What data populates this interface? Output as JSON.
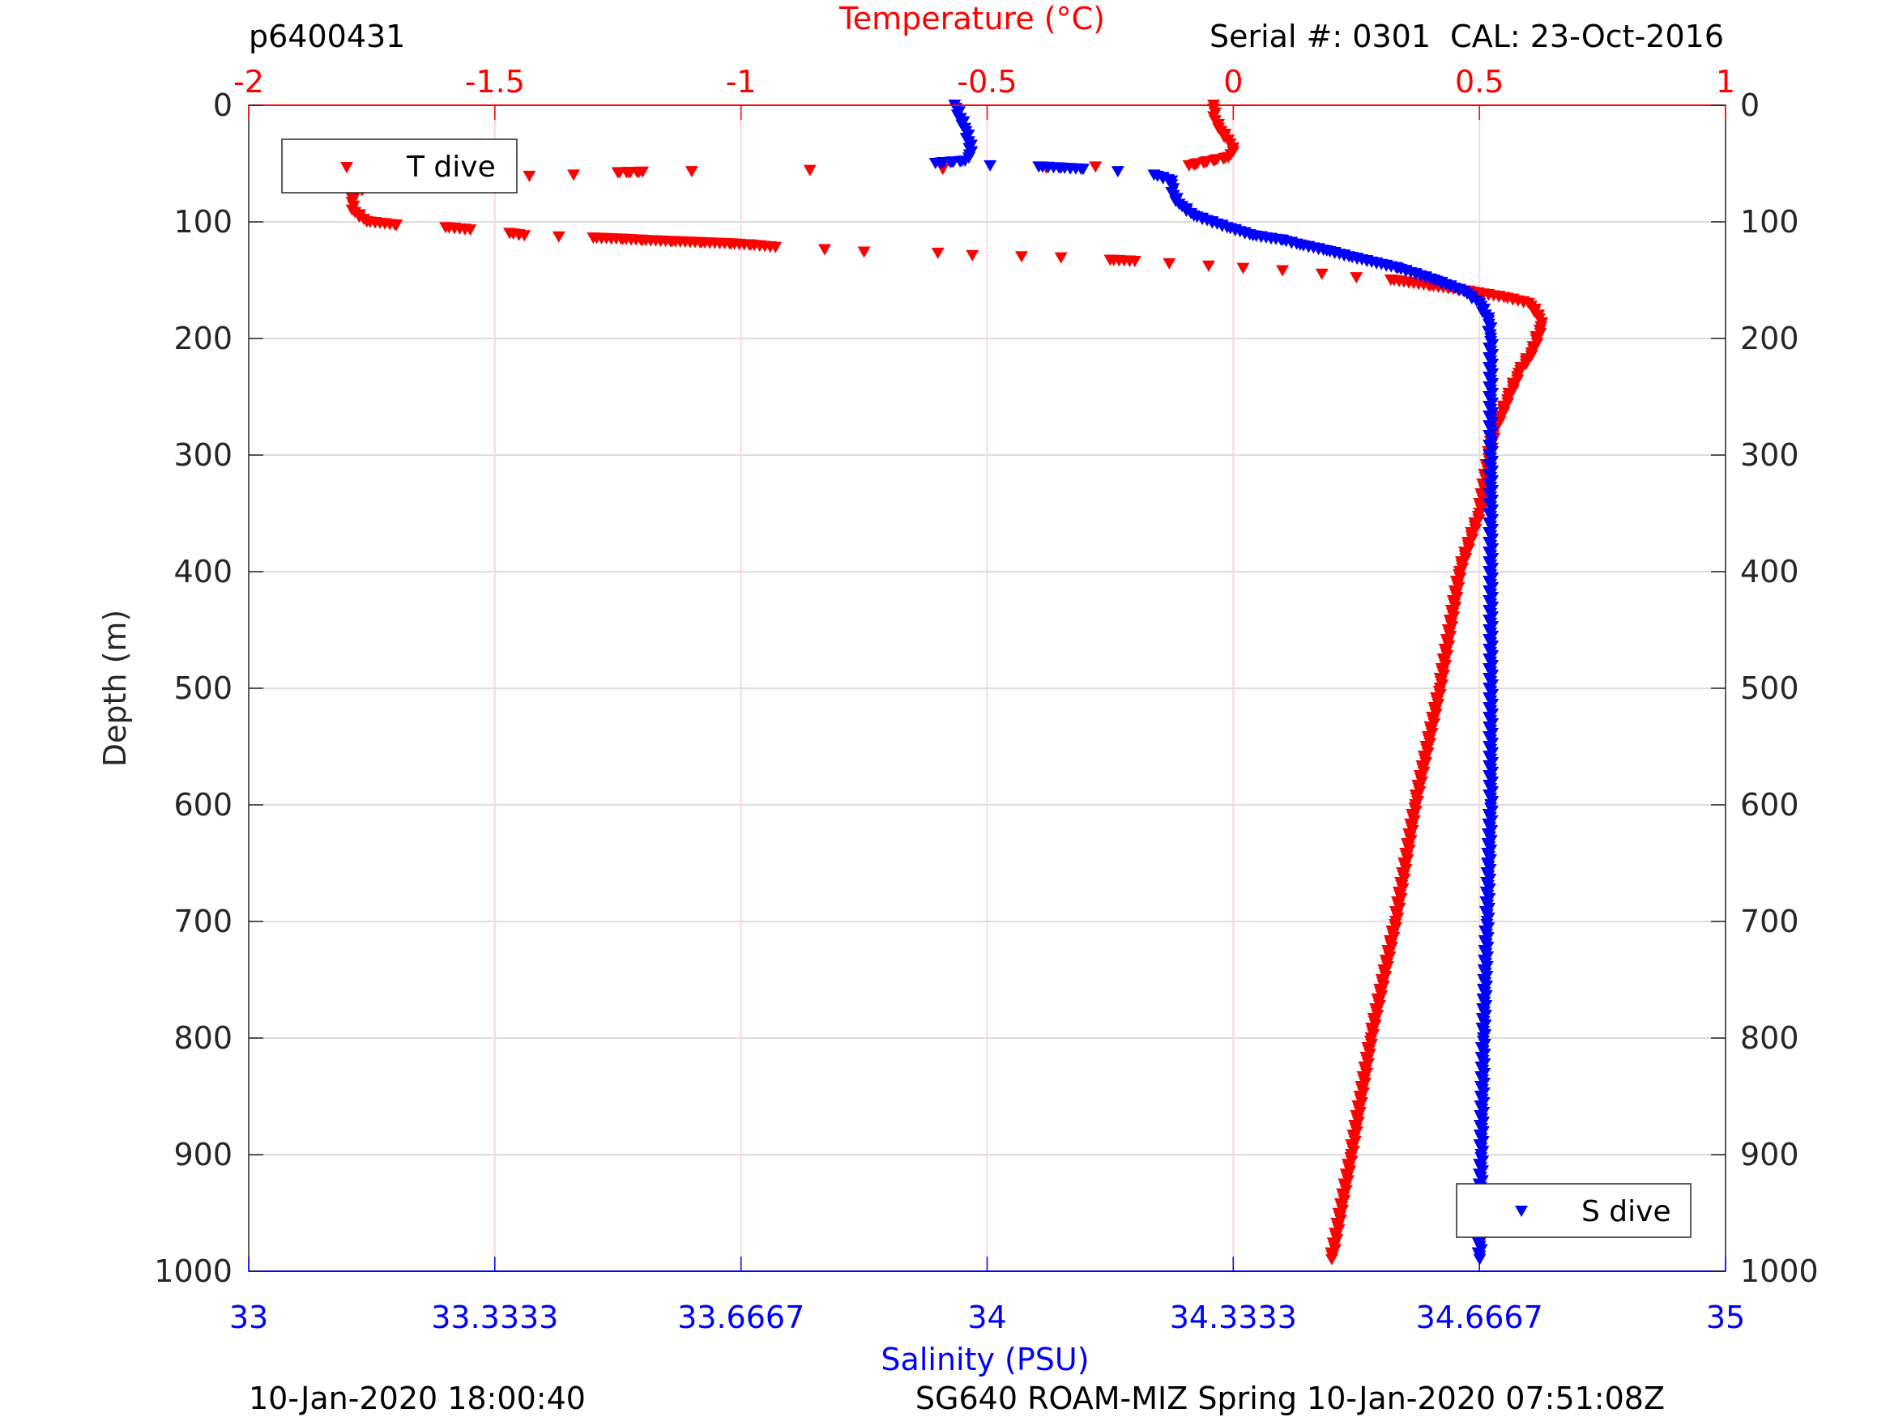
{
  "header": {
    "profile_id": "p6400431",
    "serial_cal": "Serial #: 0301  CAL: 23-Oct-2016"
  },
  "footer": {
    "left": "10-Jan-2020 18:00:40",
    "right": "SG640 ROAM-MIZ Spring 10-Jan-2020 07:51:08Z"
  },
  "chart_data": {
    "type": "scatter",
    "ylabel": "Depth (m)",
    "ylim": [
      1000,
      0
    ],
    "yticks": [
      "0",
      "100",
      "200",
      "300",
      "400",
      "500",
      "600",
      "700",
      "800",
      "900",
      "1000"
    ],
    "top_axis": {
      "label": "Temperature (°C)",
      "lim": [
        -2,
        1
      ],
      "ticks": [
        "-2",
        "-1.5",
        "-1",
        "-0.5",
        "0",
        "0.5",
        "1"
      ],
      "color": "#ff0000"
    },
    "bottom_axis": {
      "label": "Salinity (PSU)",
      "lim": [
        33,
        35
      ],
      "ticks": [
        "33",
        "33.3333",
        "33.6667",
        "34",
        "34.3333",
        "34.6667",
        "35"
      ],
      "color": "#0000ff"
    },
    "grid": true,
    "series": [
      {
        "name": "T dive",
        "axis": "top",
        "color": "#ff0000",
        "marker": "down-triangle",
        "legend": "top-left",
        "points": [
          [
            0,
            -0.04
          ],
          [
            10,
            -0.04
          ],
          [
            20,
            -0.03
          ],
          [
            30,
            -0.01
          ],
          [
            40,
            0.0
          ],
          [
            45,
            -0.01
          ],
          [
            52,
            -0.09
          ],
          [
            53,
            -0.28
          ],
          [
            54,
            -0.38
          ],
          [
            55,
            -0.59
          ],
          [
            56,
            -0.86
          ],
          [
            57,
            -1.1
          ],
          [
            57.5,
            -1.2
          ],
          [
            58,
            -1.25
          ],
          [
            60,
            -1.34
          ],
          [
            61,
            -1.43
          ],
          [
            62,
            -1.5
          ],
          [
            63,
            -1.58
          ],
          [
            65,
            -1.64
          ],
          [
            67,
            -1.7
          ],
          [
            70,
            -1.76
          ],
          [
            75,
            -1.78
          ],
          [
            80,
            -1.79
          ],
          [
            90,
            -1.79
          ],
          [
            100,
            -1.76
          ],
          [
            103,
            -1.7
          ],
          [
            105,
            -1.6
          ],
          [
            107,
            -1.55
          ],
          [
            110,
            -1.47
          ],
          [
            112,
            -1.44
          ],
          [
            113,
            -1.37
          ],
          [
            114,
            -1.3
          ],
          [
            115,
            -1.24
          ],
          [
            116,
            -1.2
          ],
          [
            117,
            -1.14
          ],
          [
            118,
            -1.08
          ],
          [
            119,
            -1.02
          ],
          [
            120,
            -0.98
          ],
          [
            122,
            -0.93
          ],
          [
            124,
            -0.83
          ],
          [
            126,
            -0.75
          ],
          [
            127,
            -0.6
          ],
          [
            129,
            -0.53
          ],
          [
            130,
            -0.43
          ],
          [
            131,
            -0.35
          ],
          [
            133,
            -0.25
          ],
          [
            134,
            -0.2
          ],
          [
            136,
            -0.13
          ],
          [
            138,
            -0.05
          ],
          [
            140,
            0.02
          ],
          [
            142,
            0.1
          ],
          [
            145,
            0.18
          ],
          [
            148,
            0.25
          ],
          [
            150,
            0.32
          ],
          [
            155,
            0.4
          ],
          [
            160,
            0.48
          ],
          [
            165,
            0.55
          ],
          [
            170,
            0.6
          ],
          [
            180,
            0.62
          ],
          [
            190,
            0.625
          ],
          [
            210,
            0.61
          ],
          [
            230,
            0.58
          ],
          [
            250,
            0.56
          ],
          [
            280,
            0.53
          ],
          [
            300,
            0.52
          ],
          [
            350,
            0.5
          ],
          [
            400,
            0.46
          ],
          [
            500,
            0.42
          ],
          [
            600,
            0.37
          ],
          [
            700,
            0.33
          ],
          [
            800,
            0.28
          ],
          [
            900,
            0.24
          ],
          [
            990,
            0.2
          ]
        ]
      },
      {
        "name": "S dive",
        "axis": "bottom",
        "color": "#0000ff",
        "marker": "down-triangle",
        "legend": "bottom-right",
        "points": [
          [
            0,
            33.956
          ],
          [
            20,
            33.97
          ],
          [
            40,
            33.979
          ],
          [
            48,
            33.97
          ],
          [
            50,
            33.93
          ],
          [
            52,
            34.004
          ],
          [
            53,
            34.07
          ],
          [
            54,
            34.1
          ],
          [
            55,
            34.13
          ],
          [
            57,
            34.177
          ],
          [
            60,
            34.226
          ],
          [
            65,
            34.25
          ],
          [
            75,
            34.25
          ],
          [
            85,
            34.26
          ],
          [
            95,
            34.28
          ],
          [
            105,
            34.325
          ],
          [
            112,
            34.36
          ],
          [
            116,
            34.4
          ],
          [
            120,
            34.424
          ],
          [
            125,
            34.46
          ],
          [
            130,
            34.49
          ],
          [
            140,
            34.556
          ],
          [
            150,
            34.605
          ],
          [
            160,
            34.646
          ],
          [
            170,
            34.667
          ],
          [
            185,
            34.679
          ],
          [
            200,
            34.682
          ],
          [
            600,
            34.682
          ],
          [
            700,
            34.677
          ],
          [
            800,
            34.672
          ],
          [
            900,
            34.669
          ],
          [
            990,
            34.667
          ]
        ]
      }
    ]
  }
}
